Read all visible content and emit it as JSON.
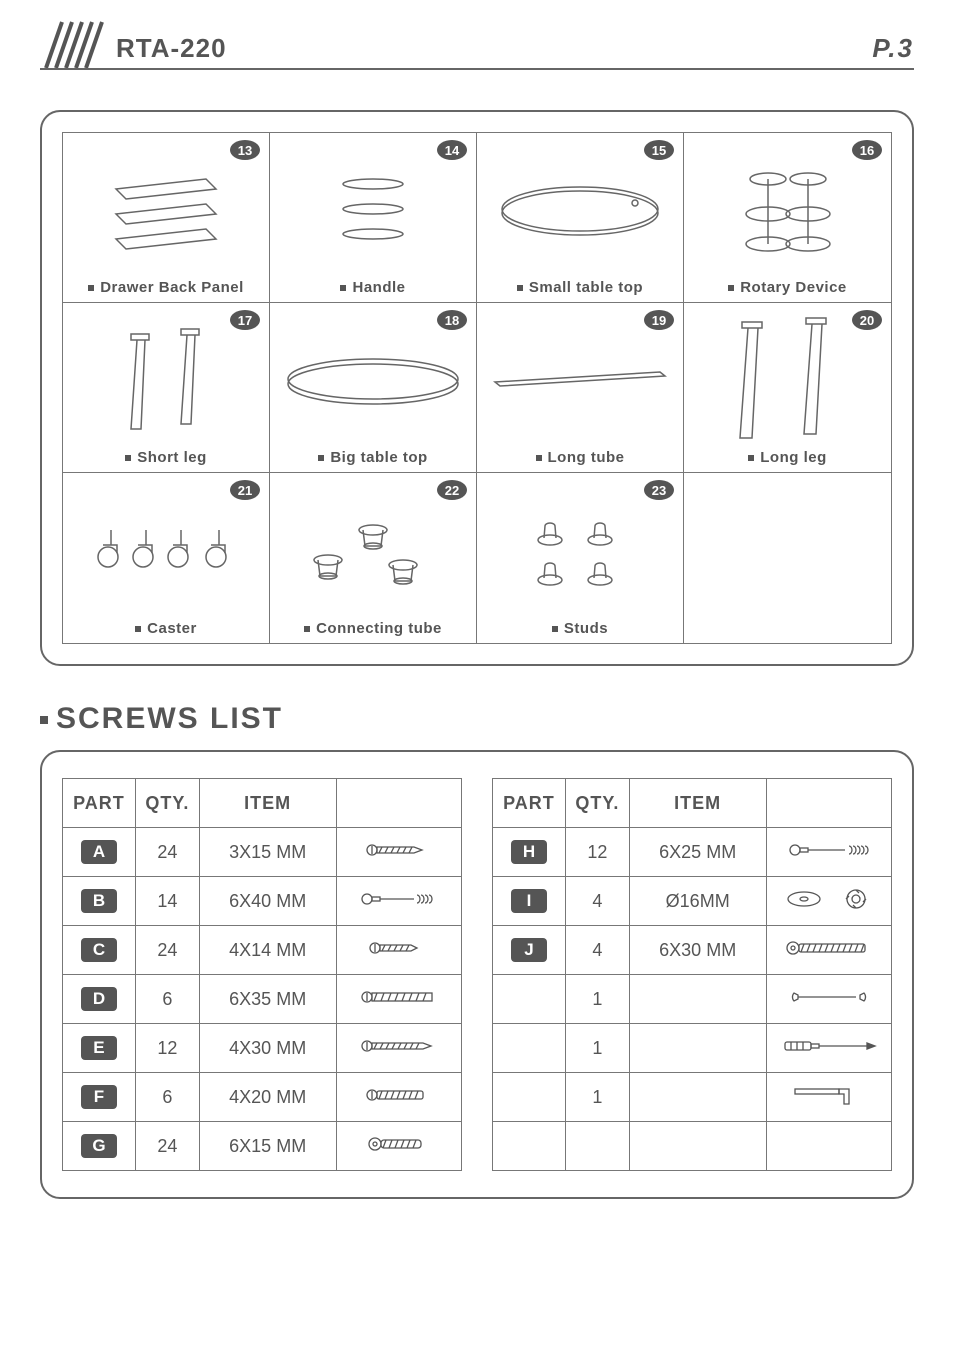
{
  "header": {
    "product_code": "RTA-220",
    "page_number": "P.3"
  },
  "parts": [
    {
      "num": "13",
      "label": "Drawer Back Panel"
    },
    {
      "num": "14",
      "label": "Handle"
    },
    {
      "num": "15",
      "label": "Small table top"
    },
    {
      "num": "16",
      "label": "Rotary Device"
    },
    {
      "num": "17",
      "label": "Short leg"
    },
    {
      "num": "18",
      "label": "Big table top"
    },
    {
      "num": "19",
      "label": "Long tube"
    },
    {
      "num": "20",
      "label": "Long leg"
    },
    {
      "num": "21",
      "label": "Caster"
    },
    {
      "num": "22",
      "label": "Connecting tube"
    },
    {
      "num": "23",
      "label": "Studs"
    },
    {
      "num": "",
      "label": ""
    }
  ],
  "section_title": "SCREWS LIST",
  "screws_headers": {
    "part": "PART",
    "qty": "QTY.",
    "item": "ITEM"
  },
  "screws_left": [
    {
      "id": "A",
      "qty": "24",
      "item": "3X15 MM"
    },
    {
      "id": "B",
      "qty": "14",
      "item": "6X40 MM"
    },
    {
      "id": "C",
      "qty": "24",
      "item": "4X14 MM"
    },
    {
      "id": "D",
      "qty": "6",
      "item": "6X35 MM"
    },
    {
      "id": "E",
      "qty": "12",
      "item": "4X30 MM"
    },
    {
      "id": "F",
      "qty": "6",
      "item": "4X20 MM"
    },
    {
      "id": "G",
      "qty": "24",
      "item": "6X15 MM"
    }
  ],
  "screws_right": [
    {
      "id": "H",
      "qty": "12",
      "item": "6X25 MM"
    },
    {
      "id": "I",
      "qty": "4",
      "item": "Ø16MM"
    },
    {
      "id": "J",
      "qty": "4",
      "item": "6X30 MM"
    },
    {
      "id": "",
      "qty": "1",
      "item": ""
    },
    {
      "id": "",
      "qty": "1",
      "item": ""
    },
    {
      "id": "",
      "qty": "1",
      "item": ""
    },
    {
      "id": "",
      "qty": "",
      "item": ""
    }
  ],
  "colors": {
    "stroke": "#666",
    "text": "#555",
    "badge_bg": "#555",
    "badge_fg": "#fff"
  }
}
